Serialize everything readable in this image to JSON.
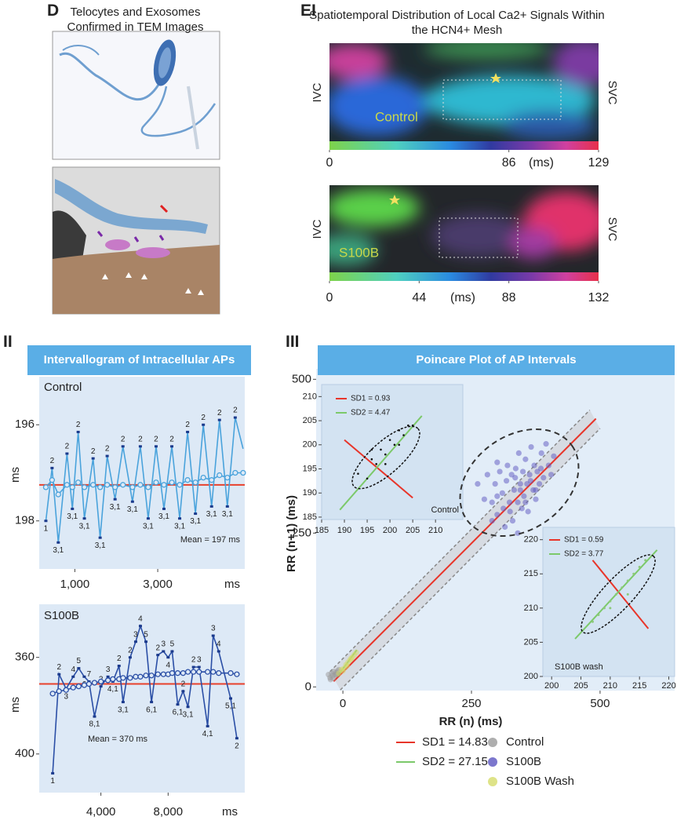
{
  "panels": {
    "D": {
      "label": "D",
      "title": "Telocytes and Exosomes Confirmed in TEM Images"
    },
    "EI": {
      "label": "EI",
      "title": "Spatiotemporal Distribution of Local Ca2+ Signals Within the HCN4+ Mesh",
      "maps": [
        {
          "condition": "Control",
          "left": "IVC",
          "right": "SVC",
          "colorbar": {
            "ticks": [
              0,
              86,
              129
            ],
            "unit": "(ms)"
          }
        },
        {
          "condition": "S100B",
          "left": "IVC",
          "right": "SVC",
          "colorbar": {
            "ticks": [
              0,
              44,
              88,
              132
            ],
            "unit": "(ms)"
          }
        }
      ]
    },
    "II": {
      "label": "II",
      "title": "Intervallogram of Intracellular APs"
    },
    "III": {
      "label": "III",
      "title": "Poincare Plot of AP Intervals"
    }
  },
  "chart_data": [
    {
      "type": "line",
      "label": "Control",
      "xlabel": "ms",
      "ylabel": "ms",
      "x": [
        300,
        450,
        600,
        810,
        940,
        1080,
        1230,
        1440,
        1610,
        1780,
        1970,
        2160,
        2390,
        2580,
        2770,
        2960,
        3150,
        3340,
        3530,
        3720,
        3910,
        4100,
        4300,
        4490,
        4680,
        4870,
        5060
      ],
      "xlim": [
        140,
        5100
      ],
      "xticks": [
        {
          "value": 1000,
          "label": "1,000"
        },
        {
          "value": 3000,
          "label": "3,000"
        }
      ],
      "ylim": [
        199,
        195
      ],
      "yticks": [
        196,
        198
      ],
      "series": [
        {
          "color": "#4aa3dc",
          "values": [
            198.0,
            196.9,
            198.45,
            196.6,
            197.75,
            196.15,
            197.95,
            196.7,
            198.35,
            196.65,
            197.55,
            196.45,
            197.6,
            196.45,
            197.95,
            196.45,
            197.75,
            196.45,
            197.95,
            196.15,
            197.85,
            196.0,
            197.7,
            195.9,
            197.7,
            195.85,
            196.5
          ],
          "point_labels": [
            "1",
            "2",
            "3,1",
            "2",
            "3,1",
            "2",
            "3,1",
            "2",
            "3,1",
            "2",
            "3,1",
            "2",
            "3,1",
            "2",
            "3,1",
            "2",
            "3,1",
            "2",
            "3,1",
            "2",
            "3,1",
            "2",
            "3,1",
            "2",
            "3,1",
            "2",
            null
          ]
        },
        {
          "color": "#4aa3dc",
          "marker": "circle",
          "values": [
            197.3,
            197.15,
            197.45,
            197.25,
            197.3,
            197.2,
            197.3,
            197.25,
            197.3,
            197.25,
            197.3,
            197.25,
            197.3,
            197.25,
            197.3,
            197.2,
            197.25,
            197.2,
            197.25,
            197.15,
            197.2,
            197.1,
            197.15,
            197.05,
            197.1,
            197.0,
            197.0
          ]
        }
      ],
      "reference_line": {
        "value": 197.25,
        "color": "#e8412c"
      },
      "annotation": "Mean = 197 ms"
    },
    {
      "type": "line",
      "label": "S100B",
      "xlabel": "ms",
      "ylabel": "ms",
      "x": [
        1130,
        1510,
        1930,
        2350,
        2680,
        3010,
        3290,
        3620,
        4000,
        4420,
        4710,
        5080,
        5320,
        5740,
        6070,
        6350,
        6680,
        7010,
        7390,
        7720,
        8000,
        8240,
        8570,
        8890,
        9180,
        9510,
        9840,
        10350,
        10680,
        11010,
        11720,
        12090
      ],
      "xlim": [
        330,
        12560
      ],
      "xticks": [
        {
          "value": 4000,
          "label": "4,000"
        },
        {
          "value": 8000,
          "label": "8,000"
        }
      ],
      "ylim": [
        416,
        338
      ],
      "yticks": [
        360,
        400
      ],
      "series": [
        {
          "color": "#2b4fa6",
          "values": [
            408,
            367,
            373,
            368,
            364.5,
            368,
            370,
            384.5,
            372,
            368,
            370,
            363.5,
            378.5,
            360,
            353.5,
            347,
            353.5,
            378.5,
            359,
            357.5,
            360,
            357.5,
            379.5,
            374,
            380.5,
            364,
            364,
            388.5,
            351,
            357.5,
            377,
            393.5
          ],
          "point_labels": [
            "1",
            "2",
            "3",
            "4",
            "5",
            "6",
            "7",
            "8,1",
            "2",
            "3",
            "4,1",
            "2",
            "3,1",
            "2",
            "3",
            "4",
            "5",
            "6,1",
            "2",
            "3",
            "4",
            "5",
            "6,1",
            "2",
            "3,1",
            "2",
            "3",
            "4,1",
            "3",
            "4",
            "5,1",
            "2"
          ]
        },
        {
          "color": "#2b4fa6",
          "marker": "circle",
          "values": [
            375,
            374,
            373.5,
            372.5,
            372,
            371.5,
            371,
            370.5,
            370,
            369.5,
            369,
            369,
            368.5,
            368.5,
            368,
            368,
            367.5,
            367.5,
            367,
            367,
            367,
            366.5,
            366.5,
            366.5,
            366,
            366,
            366,
            366,
            366,
            366.5,
            366.5,
            367
          ]
        }
      ],
      "reference_line": {
        "value": 371,
        "color": "#e8412c"
      },
      "annotation": "Mean = 370 ms"
    },
    {
      "type": "scatter",
      "xlabel": "RR (n) (ms)",
      "ylabel": "RR (n+1) (ms)",
      "xlim": [
        -52,
        645
      ],
      "xticks": [
        0,
        250,
        500
      ],
      "ylim": [
        -6,
        517
      ],
      "yticks": [
        0,
        250,
        500
      ],
      "guides": [
        {
          "x": [
            -25,
            480
          ],
          "y": [
            25,
            450
          ]
        },
        {
          "x": [
            -5,
            500
          ],
          "y": [
            -5,
            420
          ]
        }
      ],
      "series": [
        {
          "name": "SD1 = 14.83",
          "color": "#e8352a",
          "mode": "line",
          "x": [
            -18,
            492
          ],
          "values": [
            9,
            436
          ]
        },
        {
          "name": "SD2 = 27.15",
          "color": "#7cc96a",
          "mode": "line",
          "x": [
            -11,
            27
          ],
          "values": [
            17,
            60
          ]
        },
        {
          "name": "Control",
          "color": "#9a9a9a",
          "x": [
            -28,
            -25,
            -22,
            -20,
            -18,
            -15,
            -13,
            -10,
            -8,
            -24,
            -19,
            -12
          ],
          "values": [
            20,
            15,
            22,
            18,
            25,
            20,
            23,
            26,
            28,
            12,
            14,
            20
          ]
        },
        {
          "name": "S100B",
          "color": "#5b55c0",
          "x": [
            262,
            275,
            281,
            290,
            296,
            300,
            305,
            310,
            312,
            318,
            320,
            324,
            328,
            330,
            333,
            336,
            340,
            342,
            345,
            348,
            350,
            352,
            355,
            358,
            360,
            363,
            366,
            370,
            372,
            375,
            378,
            382,
            386,
            390,
            395,
            400,
            405,
            410,
            290,
            300,
            315,
            325,
            335,
            345,
            355,
            365,
            375,
            385,
            300,
            340
          ],
          "values": [
            330,
            305,
            345,
            300,
            330,
            280,
            350,
            315,
            290,
            335,
            360,
            300,
            345,
            270,
            320,
            355,
            300,
            380,
            330,
            290,
            350,
            310,
            370,
            330,
            285,
            345,
            390,
            320,
            360,
            305,
            350,
            330,
            380,
            340,
            395,
            360,
            345,
            375,
            270,
            310,
            260,
            285,
            340,
            320,
            300,
            335,
            320,
            355,
            365,
            250
          ]
        },
        {
          "name": "S100B Wash",
          "color": "#d6dc6a",
          "x": [
            -8,
            -3,
            2,
            6,
            10,
            14,
            18,
            22,
            26,
            0,
            8,
            16
          ],
          "values": [
            22,
            28,
            30,
            36,
            40,
            44,
            48,
            52,
            56,
            26,
            34,
            46
          ]
        }
      ]
    },
    {
      "type": "scatter",
      "label": "Control",
      "xlim": [
        185,
        216
      ],
      "xticks": [
        185,
        190,
        195,
        200,
        205,
        210
      ],
      "ylim": [
        184.5,
        212.5
      ],
      "yticks": [
        185,
        190,
        195,
        200,
        205,
        210
      ],
      "series": [
        {
          "name": "SD1 = 0.93",
          "color": "#e8352a",
          "mode": "line",
          "x": [
            190,
            205
          ],
          "values": [
            201,
            189
          ]
        },
        {
          "name": "SD2 = 4.47",
          "color": "#7cc96a",
          "mode": "line",
          "x": [
            189,
            207
          ],
          "values": [
            186.5,
            206
          ]
        },
        {
          "color": "#111111",
          "x": [
            193,
            195,
            196,
            197,
            198,
            199,
            200,
            201,
            202,
            203,
            204,
            205,
            196,
            199,
            202
          ],
          "values": [
            194,
            193,
            197,
            196,
            199,
            198,
            201,
            200,
            203,
            202,
            204,
            204,
            199,
            196,
            200
          ]
        }
      ]
    },
    {
      "type": "scatter",
      "label": "S100B wash",
      "xlim": [
        198.5,
        221
      ],
      "xticks": [
        200,
        205,
        210,
        215,
        220
      ],
      "ylim": [
        200,
        221.8
      ],
      "yticks": [
        200,
        205,
        210,
        215,
        220
      ],
      "series": [
        {
          "name": "SD1 = 0.59",
          "color": "#e8352a",
          "mode": "line",
          "x": [
            207,
            216.5
          ],
          "values": [
            217,
            207
          ]
        },
        {
          "name": "SD2 = 3.77",
          "color": "#7cc96a",
          "mode": "line",
          "x": [
            204,
            218
          ],
          "values": [
            205.5,
            218.5
          ]
        },
        {
          "color": "#8cc97a",
          "x": [
            207,
            208,
            209,
            210,
            211,
            212,
            213,
            214,
            215,
            216,
            210,
            213
          ],
          "values": [
            208,
            209,
            210,
            211,
            212,
            213,
            214,
            215,
            216,
            217,
            210,
            212
          ]
        }
      ]
    }
  ]
}
